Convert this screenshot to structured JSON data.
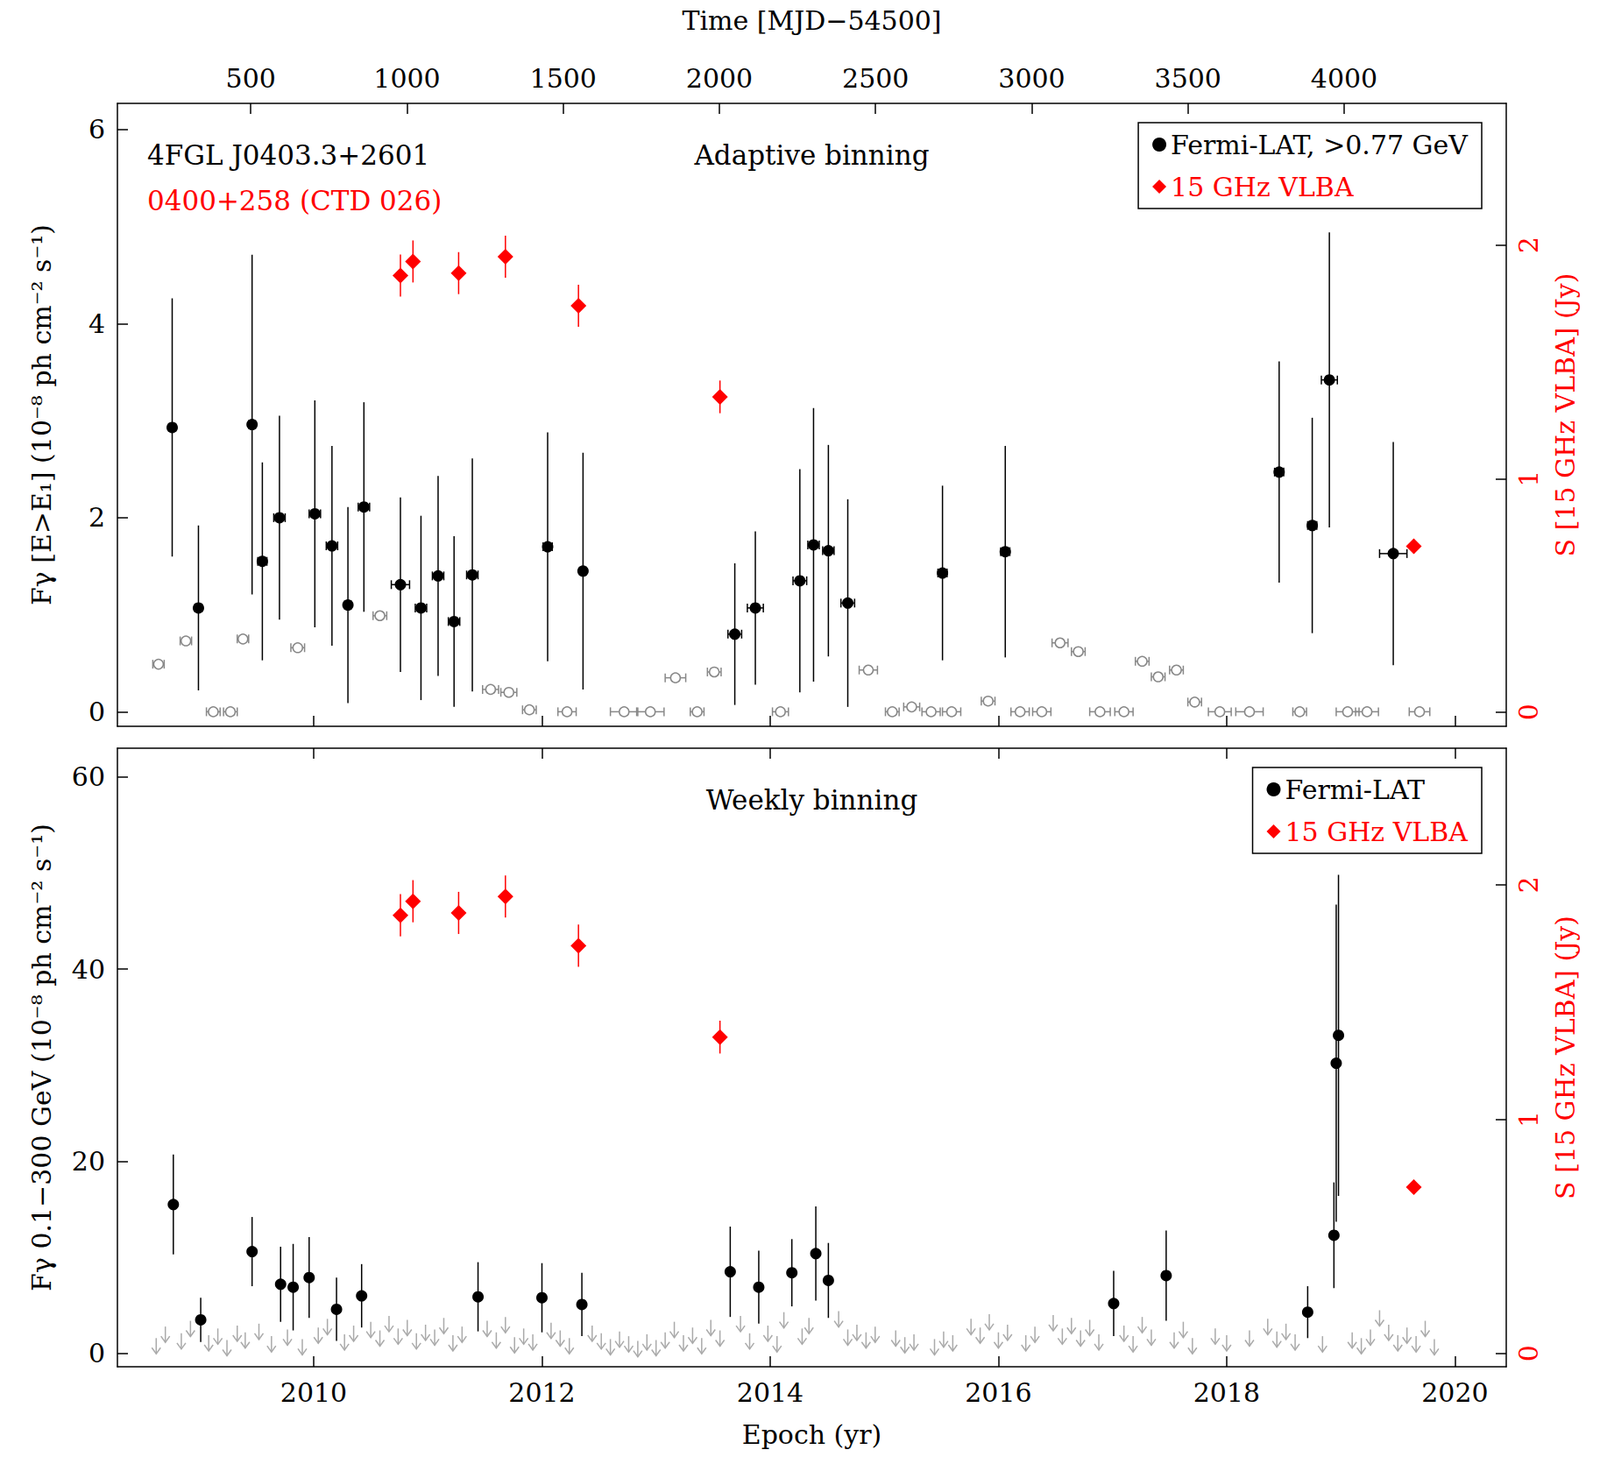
{
  "chart_data": [
    {
      "type": "scatter",
      "title": "Adaptive binning",
      "annotations": [
        {
          "text": "4FGL J0403.3+2601",
          "color": "#000000"
        },
        {
          "text": "0400+258 (CTD 026)",
          "color": "#ff0000"
        }
      ],
      "x2_label": "Time [MJD−54500]",
      "y_label": "Fγ [E>E₁] (10⁻⁸ ph cm⁻² s⁻¹)",
      "y2_label": "S [15 GHz VLBA] (Jy)",
      "xlim": [
        2008.28,
        2020.45
      ],
      "xticks": [
        2010,
        2012,
        2014,
        2016,
        2018,
        2020
      ],
      "x2lim": [
        73,
        4519
      ],
      "x2ticks": [
        500,
        1000,
        1500,
        2000,
        2500,
        3000,
        3500,
        4000
      ],
      "ylim": [
        -0.15,
        6.27
      ],
      "yticks": [
        0,
        2,
        4,
        6
      ],
      "y2lim": [
        -0.061,
        2.607
      ],
      "y2ticks": [
        0,
        1,
        2
      ],
      "grid": false,
      "legend": "upper right",
      "series": [
        {
          "name": "Fermi-LAT, >0.77 GeV",
          "color": "#000000",
          "marker": "circle",
          "x": [
            2008.76,
            2008.99,
            2009.46,
            2009.55,
            2009.7,
            2010.01,
            2010.16,
            2010.3,
            2010.44,
            2010.76,
            2010.94,
            2011.09,
            2011.23,
            2011.39,
            2012.05,
            2012.36,
            2013.69,
            2013.87,
            2014.26,
            2014.38,
            2014.51,
            2014.68,
            2015.51,
            2016.06,
            2018.46,
            2018.75,
            2018.9,
            2019.46
          ],
          "values": [
            2.93,
            1.07,
            2.96,
            1.55,
            2.0,
            2.04,
            1.71,
            1.1,
            2.11,
            1.31,
            1.07,
            1.4,
            0.93,
            1.41,
            1.7,
            1.45,
            0.8,
            1.07,
            1.35,
            1.72,
            1.66,
            1.12,
            1.43,
            1.65,
            2.47,
            1.92,
            3.42,
            1.63
          ],
          "y_err": [
            1.33,
            0.85,
            1.75,
            1.02,
            1.05,
            1.17,
            1.03,
            1.01,
            1.08,
            0.9,
            0.95,
            1.03,
            0.88,
            1.2,
            1.18,
            1.22,
            0.73,
            0.79,
            1.15,
            1.41,
            1.09,
            1.07,
            0.9,
            1.09,
            1.14,
            1.11,
            1.52,
            1.15
          ],
          "x_err": [
            0.03,
            0.03,
            0.03,
            0.04,
            0.05,
            0.05,
            0.05,
            0.03,
            0.05,
            0.08,
            0.05,
            0.05,
            0.05,
            0.05,
            0.04,
            0.03,
            0.06,
            0.07,
            0.06,
            0.05,
            0.05,
            0.06,
            0.04,
            0.04,
            0.04,
            0.04,
            0.07,
            0.12
          ]
        },
        {
          "color": "#888888",
          "marker": "open circle",
          "x": [
            2008.64,
            2008.88,
            2009.12,
            2009.27,
            2009.38,
            2009.86,
            2010.58,
            2011.55,
            2011.71,
            2011.89,
            2012.22,
            2012.72,
            2012.95,
            2013.17,
            2013.36,
            2013.51,
            2014.09,
            2014.86,
            2015.07,
            2015.24,
            2015.41,
            2015.59,
            2015.91,
            2016.19,
            2016.38,
            2016.54,
            2016.7,
            2016.89,
            2017.1,
            2017.26,
            2017.4,
            2017.56,
            2017.72,
            2017.94,
            2018.2,
            2018.64,
            2019.06,
            2019.23,
            2019.69
          ],
          "values": [
            0.49,
            0.73,
            0,
            0,
            0.75,
            0.66,
            0.99,
            0.23,
            0.2,
            0.02,
            0,
            0,
            0,
            0.35,
            0,
            0.41,
            0,
            0.43,
            0,
            0.05,
            0,
            0,
            0.11,
            0,
            0,
            0.71,
            0.62,
            0,
            0,
            0.52,
            0.36,
            0.43,
            0.1,
            0,
            0,
            0,
            0,
            0,
            0
          ],
          "x_err": [
            0.05,
            0.05,
            0.06,
            0.06,
            0.05,
            0.06,
            0.06,
            0.07,
            0.07,
            0.06,
            0.08,
            0.12,
            0.12,
            0.09,
            0.06,
            0.06,
            0.07,
            0.08,
            0.06,
            0.07,
            0.08,
            0.08,
            0.06,
            0.08,
            0.08,
            0.07,
            0.06,
            0.09,
            0.08,
            0.06,
            0.06,
            0.06,
            0.06,
            0.1,
            0.12,
            0.06,
            0.1,
            0.1,
            0.09
          ]
        },
        {
          "name": "15 GHz VLBA",
          "color": "#ff0000",
          "marker": "diamond",
          "axis": "y2",
          "x": [
            2010.76,
            2010.87,
            2011.27,
            2011.68,
            2012.32,
            2013.56,
            2019.64
          ],
          "values": [
            1.87,
            1.93,
            1.88,
            1.95,
            1.74,
            1.35,
            0.71
          ],
          "y_err": [
            0.09,
            0.09,
            0.09,
            0.09,
            0.09,
            0.07,
            0.03
          ]
        }
      ]
    },
    {
      "type": "scatter",
      "title": "Weekly binning",
      "x_label": "Epoch (yr)",
      "y_label": "Fγ 0.1−300 GeV (10⁻⁸ ph cm⁻² s⁻¹)",
      "y2_label": "S [15 GHz VLBA] (Jy)",
      "xlim": [
        2008.28,
        2020.45
      ],
      "xticks": [
        2010,
        2012,
        2014,
        2016,
        2018,
        2020
      ],
      "ylim": [
        -1.38,
        62.97
      ],
      "yticks": [
        0,
        20,
        40,
        60
      ],
      "y2lim": [
        -0.057,
        2.583
      ],
      "y2ticks": [
        0,
        1,
        2
      ],
      "grid": false,
      "legend": "upper right",
      "series": [
        {
          "name": "Fermi-LAT",
          "color": "#000000",
          "marker": "circle",
          "x": [
            2008.77,
            2009.01,
            2009.46,
            2009.71,
            2009.82,
            2009.96,
            2010.2,
            2010.42,
            2011.44,
            2012.0,
            2012.35,
            2013.65,
            2013.9,
            2014.19,
            2014.4,
            2014.51,
            2017.01,
            2017.47,
            2018.71,
            2018.94,
            2018.96,
            2018.98
          ],
          "values": [
            15.5,
            3.5,
            10.6,
            7.2,
            6.9,
            7.9,
            4.6,
            6.0,
            5.9,
            5.8,
            5.1,
            8.5,
            6.9,
            8.4,
            10.4,
            7.6,
            5.2,
            8.1,
            4.3,
            12.3,
            30.2,
            33.1
          ],
          "y_err": [
            5.2,
            2.3,
            3.6,
            3.9,
            4.5,
            4.2,
            3.3,
            3.3,
            3.6,
            3.6,
            3.3,
            4.7,
            3.8,
            3.5,
            4.9,
            3.9,
            3.4,
            4.7,
            2.7,
            5.5,
            16.5,
            16.7
          ]
        },
        {
          "color": "#aaaaaa",
          "marker": "arrow",
          "x": [
            2008.62,
            2008.7,
            2008.84,
            2008.92,
            2009.08,
            2009.16,
            2009.24,
            2009.33,
            2009.4,
            2009.52,
            2009.63,
            2009.77,
            2009.9,
            2010.04,
            2010.12,
            2010.27,
            2010.35,
            2010.5,
            2010.58,
            2010.66,
            2010.74,
            2010.82,
            2010.9,
            2010.98,
            2011.06,
            2011.14,
            2011.22,
            2011.3,
            2011.52,
            2011.6,
            2011.68,
            2011.76,
            2011.84,
            2011.92,
            2012.08,
            2012.16,
            2012.24,
            2012.44,
            2012.52,
            2012.6,
            2012.68,
            2012.76,
            2012.84,
            2012.92,
            2013.0,
            2013.08,
            2013.16,
            2013.24,
            2013.32,
            2013.4,
            2013.48,
            2013.56,
            2013.74,
            2013.82,
            2013.98,
            2014.06,
            2014.12,
            2014.28,
            2014.34,
            2014.6,
            2014.68,
            2014.76,
            2014.84,
            2014.92,
            2015.1,
            2015.18,
            2015.26,
            2015.44,
            2015.52,
            2015.6,
            2015.76,
            2015.84,
            2015.92,
            2016.0,
            2016.08,
            2016.24,
            2016.32,
            2016.48,
            2016.56,
            2016.64,
            2016.72,
            2016.8,
            2016.88,
            2017.1,
            2017.18,
            2017.26,
            2017.34,
            2017.54,
            2017.62,
            2017.7,
            2017.9,
            2018.0,
            2018.2,
            2018.36,
            2018.44,
            2018.52,
            2018.6,
            2018.84,
            2019.1,
            2019.18,
            2019.26,
            2019.34,
            2019.42,
            2019.5,
            2019.58,
            2019.66,
            2019.74,
            2019.82
          ],
          "values": [
            1.6,
            2.8,
            2.1,
            3.4,
            1.9,
            2.6,
            1.4,
            2.9,
            2.2,
            3.1,
            1.8,
            2.5,
            1.5,
            2.7,
            3.6,
            2.0,
            2.9,
            3.3,
            2.4,
            3.9,
            2.6,
            3.5,
            2.1,
            3.0,
            2.5,
            3.7,
            1.9,
            2.8,
            3.4,
            2.2,
            3.8,
            1.7,
            2.6,
            2.0,
            3.2,
            2.4,
            1.6,
            2.9,
            2.1,
            1.5,
            2.3,
            1.8,
            1.3,
            2.0,
            1.4,
            2.2,
            3.3,
            1.9,
            2.7,
            1.6,
            3.5,
            2.4,
            3.9,
            2.1,
            2.9,
            1.8,
            4.3,
            2.6,
            3.7,
            4.4,
            2.5,
            3.0,
            2.2,
            2.8,
            2.4,
            1.7,
            2.0,
            1.5,
            2.3,
            1.9,
            3.6,
            2.7,
            4.1,
            2.2,
            3.0,
            1.9,
            2.8,
            4.0,
            2.6,
            3.7,
            2.4,
            3.5,
            2.0,
            2.9,
            1.8,
            3.8,
            2.5,
            2.2,
            3.3,
            1.6,
            2.6,
            1.9,
            2.4,
            3.6,
            2.3,
            3.1,
            2.0,
            1.8,
            2.2,
            1.6,
            2.5,
            4.5,
            3.0,
            1.9,
            2.7,
            1.8,
            3.4,
            1.5
          ]
        },
        {
          "name": "15 GHz VLBA",
          "color": "#ff0000",
          "marker": "diamond",
          "axis": "y2",
          "x": [
            2010.76,
            2010.87,
            2011.27,
            2011.68,
            2012.32,
            2013.56,
            2019.64
          ],
          "values": [
            1.87,
            1.93,
            1.88,
            1.95,
            1.74,
            1.35,
            0.71
          ],
          "y_err": [
            0.09,
            0.09,
            0.09,
            0.09,
            0.09,
            0.07,
            0.03
          ]
        }
      ]
    }
  ]
}
